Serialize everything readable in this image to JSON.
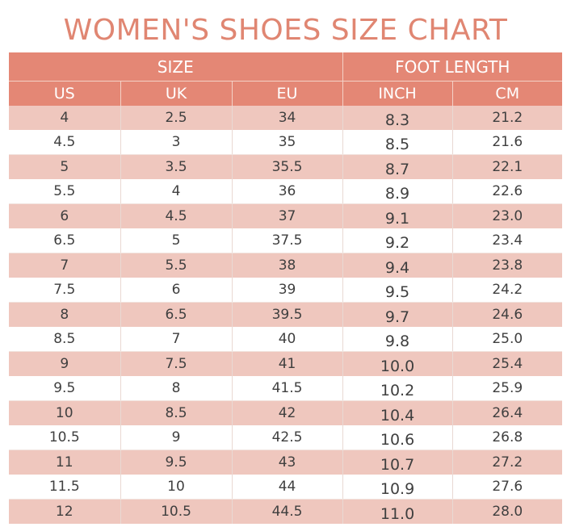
{
  "title": "WOMEN'S SHOES SIZE CHART",
  "group_headers": {
    "size": "SIZE",
    "foot_length": "FOOT LENGTH"
  },
  "columns": [
    "US",
    "UK",
    "EU",
    "INCH",
    "CM"
  ],
  "rows": [
    [
      "4",
      "2.5",
      "34",
      "8.3",
      "21.2"
    ],
    [
      "4.5",
      "3",
      "35",
      "8.5",
      "21.6"
    ],
    [
      "5",
      "3.5",
      "35.5",
      "8.7",
      "22.1"
    ],
    [
      "5.5",
      "4",
      "36",
      "8.9",
      "22.6"
    ],
    [
      "6",
      "4.5",
      "37",
      "9.1",
      "23.0"
    ],
    [
      "6.5",
      "5",
      "37.5",
      "9.2",
      "23.4"
    ],
    [
      "7",
      "5.5",
      "38",
      "9.4",
      "23.8"
    ],
    [
      "7.5",
      "6",
      "39",
      "9.5",
      "24.2"
    ],
    [
      "8",
      "6.5",
      "39.5",
      "9.7",
      "24.6"
    ],
    [
      "8.5",
      "7",
      "40",
      "9.8",
      "25.0"
    ],
    [
      "9",
      "7.5",
      "41",
      "10.0",
      "25.4"
    ],
    [
      "9.5",
      "8",
      "41.5",
      "10.2",
      "25.9"
    ],
    [
      "10",
      "8.5",
      "42",
      "10.4",
      "26.4"
    ],
    [
      "10.5",
      "9",
      "42.5",
      "10.6",
      "26.8"
    ],
    [
      "11",
      "9.5",
      "43",
      "10.7",
      "27.2"
    ],
    [
      "11.5",
      "10",
      "44",
      "10.9",
      "27.6"
    ],
    [
      "12",
      "10.5",
      "44.5",
      "11.0",
      "28.0"
    ]
  ],
  "colors": {
    "title": "#e08672",
    "header_bg": "#e48775",
    "header_text": "#ffffff",
    "stripe": "#efc7be",
    "cell_text": "#3f3f3f"
  }
}
